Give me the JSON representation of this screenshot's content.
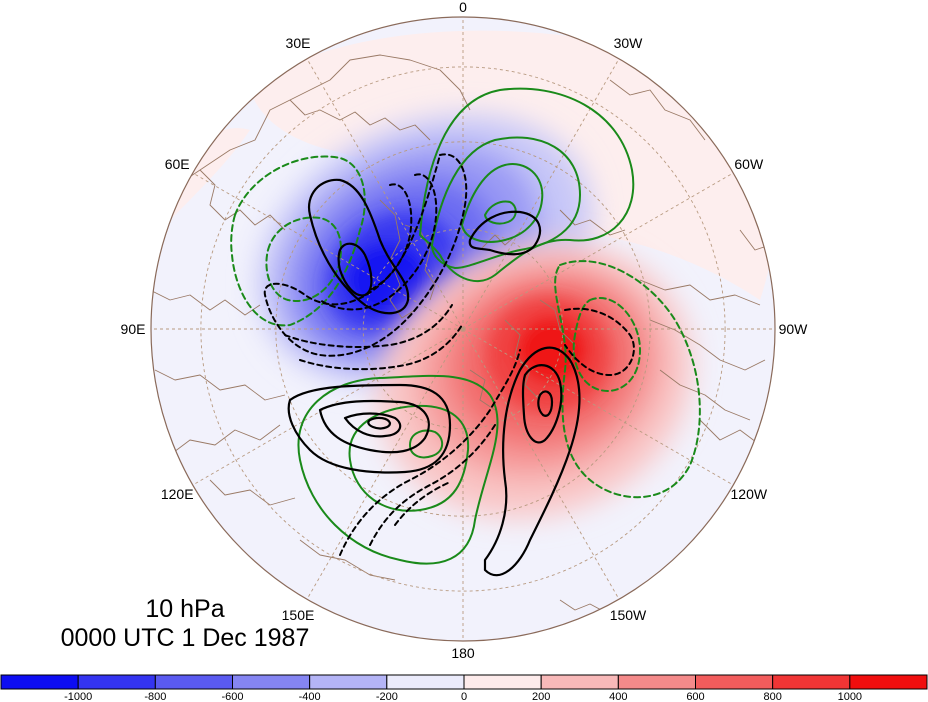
{
  "map": {
    "projection": "north-polar-stereographic",
    "longitude_labels": [
      {
        "text": "0",
        "lon": 0
      },
      {
        "text": "30W",
        "lon": -30
      },
      {
        "text": "60W",
        "lon": -60
      },
      {
        "text": "90W",
        "lon": -90
      },
      {
        "text": "120W",
        "lon": -120
      },
      {
        "text": "150W",
        "lon": -150
      },
      {
        "text": "180",
        "lon": 180
      },
      {
        "text": "150E",
        "lon": 150
      },
      {
        "text": "120E",
        "lon": 120
      },
      {
        "text": "90E",
        "lon": 90
      },
      {
        "text": "60E",
        "lon": 60
      },
      {
        "text": "30E",
        "lon": 30
      }
    ],
    "colors": {
      "grid": "#b89a80",
      "coast": "#9a7a66",
      "contour_black": "#000000",
      "contour_green": "#1a8a1a",
      "blue_max": "#1010ff",
      "red_max": "#ff1010"
    }
  },
  "caption": {
    "level": "10 hPa",
    "time": "0000 UTC 1 Dec 1987"
  },
  "colorbar": {
    "boundaries": [
      -1000,
      -800,
      -600,
      -400,
      -200,
      0,
      200,
      400,
      600,
      800,
      1000
    ],
    "labels": [
      "-1000",
      "-800",
      "-600",
      "-400",
      "-200",
      "0",
      "200",
      "400",
      "600",
      "800",
      "1000"
    ],
    "colors": [
      "#0d0df2",
      "#3434f0",
      "#5a5af0",
      "#8585f2",
      "#b4b4f6",
      "#ebebfb",
      "#fdebeb",
      "#f8b9b9",
      "#f48a8a",
      "#f25c5c",
      "#f03535",
      "#f00e0e"
    ]
  }
}
